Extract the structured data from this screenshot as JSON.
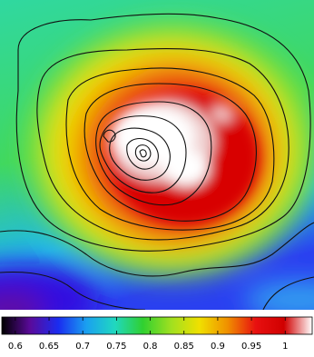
{
  "chart_data": {
    "type": "colormap-image",
    "colorbar": {
      "lim": [
        0.58,
        1.04
      ],
      "ticks": [
        0.6,
        0.65,
        0.7,
        0.75,
        0.8,
        0.85,
        0.9,
        0.95,
        1
      ],
      "colors": [
        "#000000",
        "#5a0a9a",
        "#1a2cf0",
        "#1aa0f0",
        "#20d8c0",
        "#30d030",
        "#a0e020",
        "#f0e000",
        "#f09000",
        "#e81010",
        "#d00000",
        "#ffffff"
      ]
    }
  }
}
